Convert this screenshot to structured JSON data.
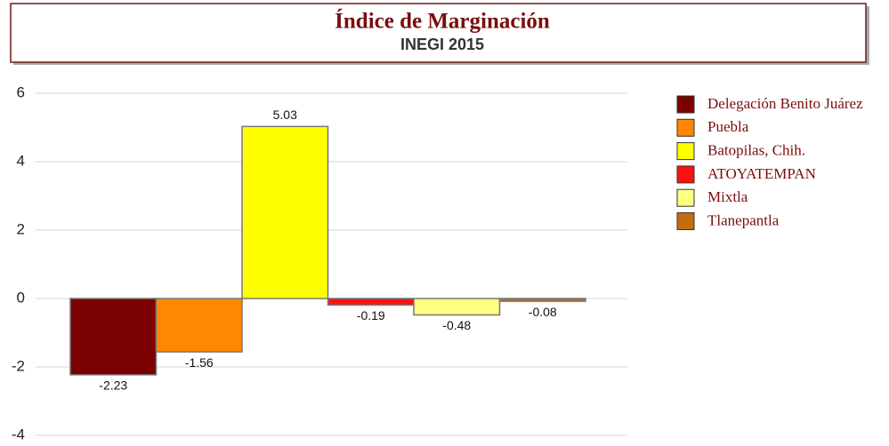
{
  "chart_data": {
    "type": "bar",
    "title": "Índice de Marginación",
    "subtitle": "INEGI 2015",
    "categories": [
      null
    ],
    "series": [
      {
        "name": "Delegación Benito Juárez",
        "color": "#7b0000",
        "values": [
          -2.23
        ]
      },
      {
        "name": "Puebla",
        "color": "#ff8800",
        "values": [
          -1.56
        ]
      },
      {
        "name": "Batopilas, Chih.",
        "color": "#ffff00",
        "values": [
          5.03
        ]
      },
      {
        "name": "ATOYATEMPAN",
        "color": "#ff1010",
        "values": [
          -0.19
        ]
      },
      {
        "name": "Mixtla",
        "color": "#ffff80",
        "values": [
          -0.48
        ]
      },
      {
        "name": "Tlanepantla",
        "color": "#c86a10",
        "values": [
          -0.08
        ]
      }
    ],
    "ylim": [
      -4,
      6
    ],
    "yticks": [
      -4,
      -2,
      0,
      2,
      4,
      6
    ],
    "grid": true,
    "legend": "right"
  }
}
